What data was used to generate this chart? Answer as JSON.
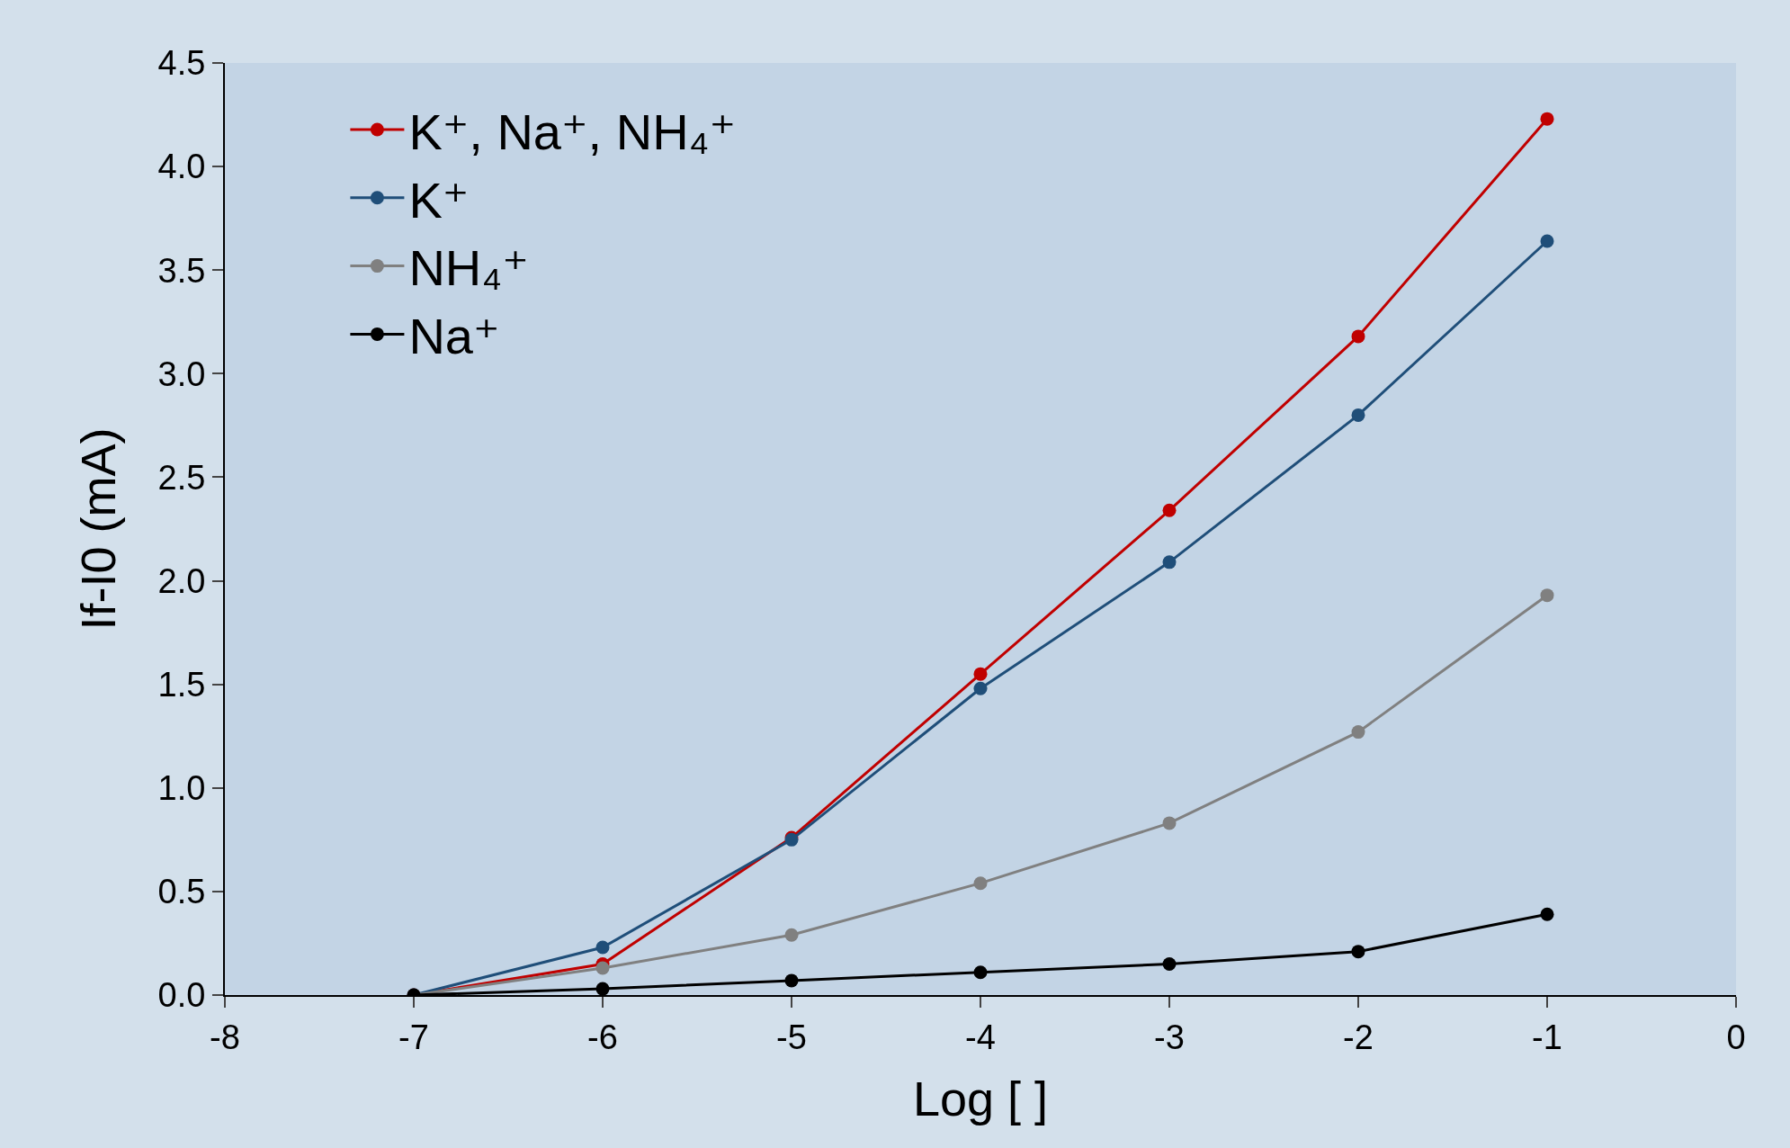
{
  "chart_data": {
    "type": "line",
    "xlabel": "Log [ ]",
    "ylabel": "If-I0 (mA)",
    "x": [
      -7,
      -6,
      -5,
      -4,
      -3,
      -2,
      -1
    ],
    "series": [
      {
        "name": "K⁺, Na⁺, NH₄⁺",
        "color": "#c00000",
        "values": [
          0,
          0.15,
          0.76,
          1.55,
          2.34,
          3.18,
          4.23
        ]
      },
      {
        "name": "K⁺",
        "color": "#1f4e79",
        "values": [
          0,
          0.23,
          0.75,
          1.48,
          2.09,
          2.8,
          3.64
        ]
      },
      {
        "name": "NH₄⁺",
        "color": "#808080",
        "values": [
          0,
          0.13,
          0.29,
          0.54,
          0.83,
          1.27,
          1.93
        ]
      },
      {
        "name": "Na⁺",
        "color": "#000000",
        "values": [
          0,
          0.03,
          0.07,
          0.11,
          0.15,
          0.21,
          0.39
        ]
      }
    ],
    "xlim": [
      -8,
      0
    ],
    "xticks": [
      -8,
      -7,
      -6,
      -5,
      -4,
      -3,
      -2,
      -1,
      0
    ],
    "ylim": [
      0,
      4.5
    ],
    "yticks": [
      {
        "value": 0,
        "label": "0.0"
      },
      {
        "value": 0.5,
        "label": "0.5"
      },
      {
        "value": 1,
        "label": "1.0"
      },
      {
        "value": 1.5,
        "label": "1.5"
      },
      {
        "value": 2,
        "label": "2.0"
      },
      {
        "value": 2.5,
        "label": "2.5"
      },
      {
        "value": 3,
        "label": "3.0"
      },
      {
        "value": 3.5,
        "label": "3.5"
      },
      {
        "value": 4,
        "label": "4.0"
      },
      {
        "value": 4.5,
        "label": "4.5"
      }
    ],
    "grid": false,
    "legend": "top left",
    "marker": "circle",
    "line_style": "solid"
  }
}
